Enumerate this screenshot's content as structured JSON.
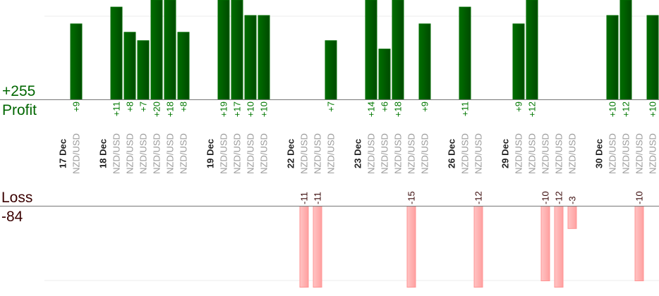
{
  "chart_data": {
    "type": "bar",
    "profit_label": "Profit",
    "profit_total": "+255",
    "loss_label": "Loss",
    "loss_total": "-84",
    "colors": {
      "profit": "#006400",
      "profit_text": "#007700",
      "loss": "#ffb0b0",
      "loss_border": "#ff9494",
      "loss_text": "#3a0a0a"
    },
    "grid": true,
    "groups": [
      {
        "date": "17 Dec",
        "trades": [
          {
            "pair": "NZD/USD",
            "pips": 9
          }
        ]
      },
      {
        "date": "18 Dec",
        "trades": [
          {
            "pair": "NZD/USD",
            "pips": 11
          },
          {
            "pair": "NZD/USD",
            "pips": 8
          },
          {
            "pair": "NZD/USD",
            "pips": 7
          },
          {
            "pair": "NZD/USD",
            "pips": 20
          },
          {
            "pair": "NZD/USD",
            "pips": 18
          },
          {
            "pair": "NZD/USD",
            "pips": 8
          }
        ]
      },
      {
        "date": "19 Dec",
        "trades": [
          {
            "pair": "NZD/USD",
            "pips": 19
          },
          {
            "pair": "NZD/USD",
            "pips": 17
          },
          {
            "pair": "NZD/USD",
            "pips": 10
          },
          {
            "pair": "NZD/USD",
            "pips": 10
          }
        ]
      },
      {
        "date": "22 Dec",
        "trades": [
          {
            "pair": "NZD/USD",
            "pips": -11
          },
          {
            "pair": "NZD/USD",
            "pips": -11
          },
          {
            "pair": "NZD/USD",
            "pips": 7
          }
        ]
      },
      {
        "date": "23 Dec",
        "trades": [
          {
            "pair": "NZD/USD",
            "pips": 14
          },
          {
            "pair": "NZD/USD",
            "pips": 6
          },
          {
            "pair": "NZD/USD",
            "pips": 18
          },
          {
            "pair": "NZD/USD",
            "pips": -15
          },
          {
            "pair": "NZD/USD",
            "pips": 9
          }
        ]
      },
      {
        "date": "26 Dec",
        "trades": [
          {
            "pair": "NZD/USD",
            "pips": 11
          },
          {
            "pair": "NZD/USD",
            "pips": -12
          }
        ]
      },
      {
        "date": "29 Dec",
        "trades": [
          {
            "pair": "NZD/USD",
            "pips": 9
          },
          {
            "pair": "NZD/USD",
            "pips": 12
          },
          {
            "pair": "NZD/USD",
            "pips": -10
          },
          {
            "pair": "NZD/USD",
            "pips": -12
          },
          {
            "pair": "NZD/USD",
            "pips": -3
          }
        ]
      },
      {
        "date": "30 Dec",
        "trades": [
          {
            "pair": "NZD/USD",
            "pips": 10
          },
          {
            "pair": "NZD/USD",
            "pips": 12
          },
          {
            "pair": "NZD/USD",
            "pips": -10
          },
          {
            "pair": "NZD/USD",
            "pips": 10
          }
        ]
      }
    ]
  }
}
